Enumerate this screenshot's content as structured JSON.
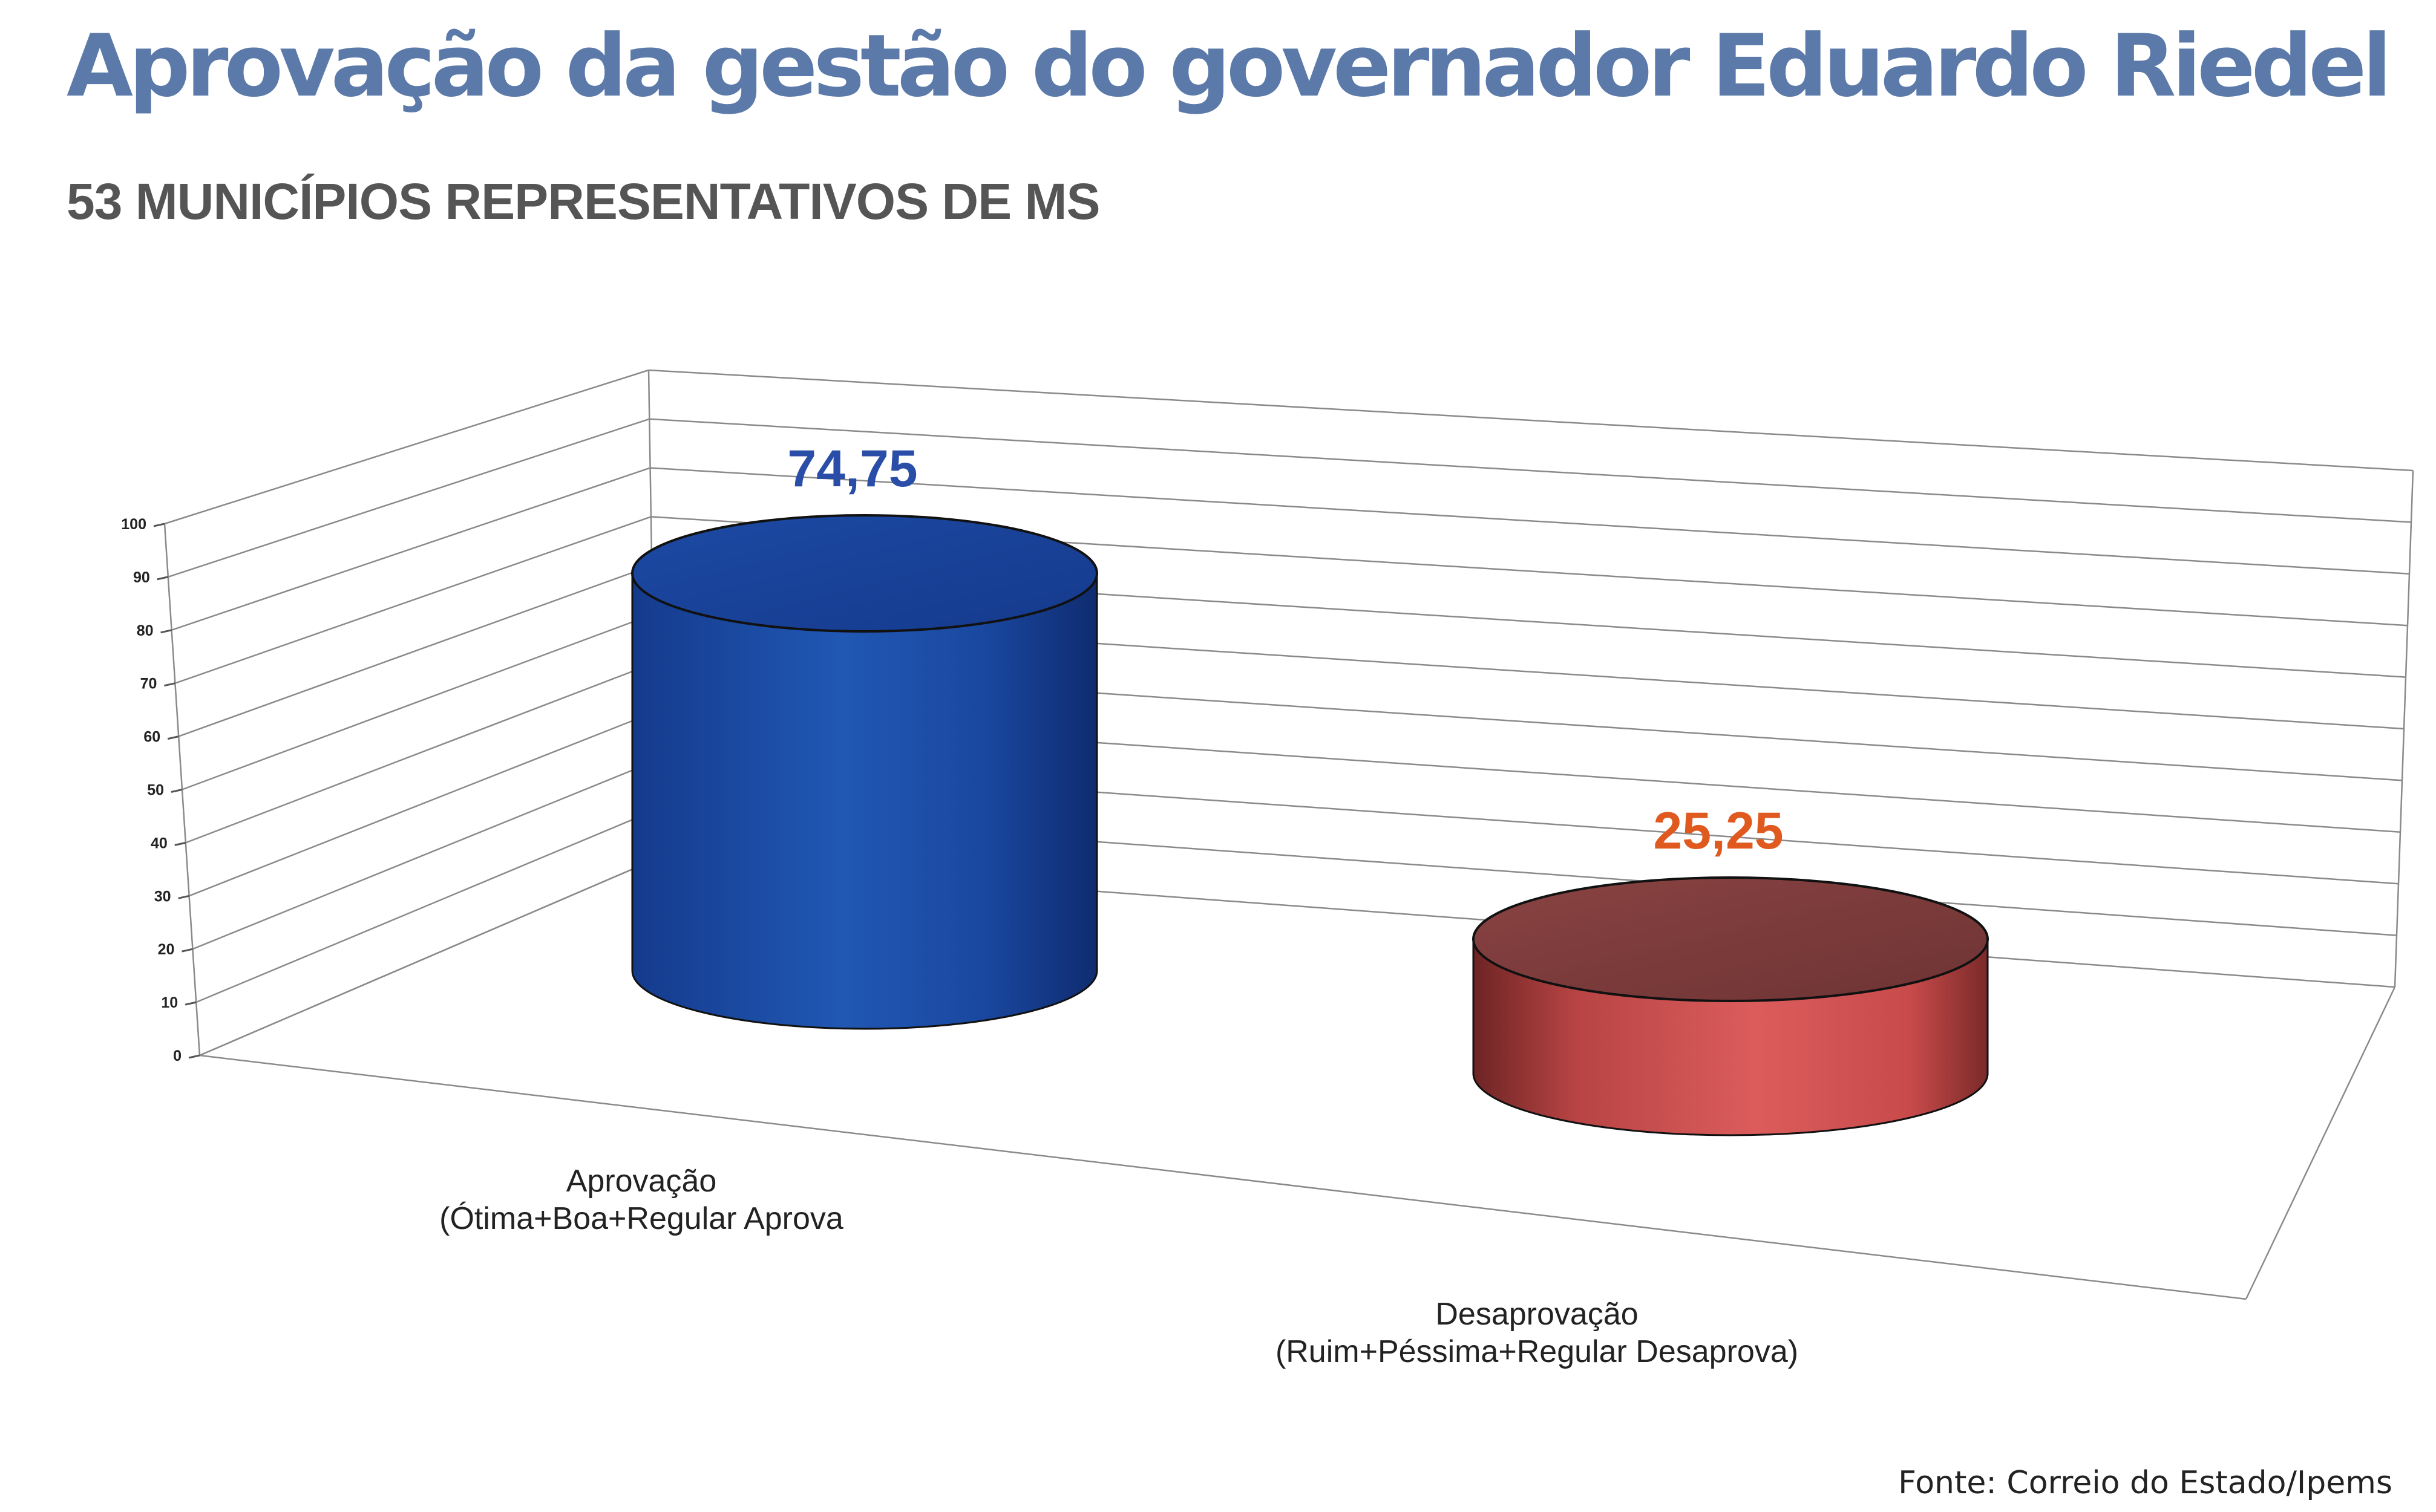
{
  "header": {
    "title": "Aprovação da gestão do governador Eduardo Riedel",
    "subtitle": "53 MUNICÍPIOS REPRESENTATIVOS DE MS"
  },
  "footer": {
    "source": "Fonte: Correio do Estado/Ipems"
  },
  "chart_data": {
    "type": "bar",
    "style": "3d-cylinder",
    "title": "Aprovação da gestão do governador Eduardo Riedel",
    "subtitle": "53 MUNICÍPIOS REPRESENTATIVOS DE MS",
    "categories": [
      [
        "Aprovação",
        "(Ótima+Boa+Regular Aprova"
      ],
      [
        "Desaprovação",
        "(Ruim+Péssima+Regular Desaprova)"
      ]
    ],
    "values": [
      74.75,
      25.25
    ],
    "value_labels": [
      "74,75",
      "25,25"
    ],
    "colors": [
      "#1e4aa8",
      "#c84848"
    ],
    "label_colors": [
      "#2a4ea8",
      "#e05a20"
    ],
    "yticks": [
      "0",
      "10",
      "20",
      "30",
      "40",
      "50",
      "60",
      "70",
      "80",
      "90",
      "100"
    ],
    "ylim": [
      0,
      100
    ],
    "grid": true,
    "legend": "none",
    "xlabel": "",
    "ylabel": ""
  }
}
